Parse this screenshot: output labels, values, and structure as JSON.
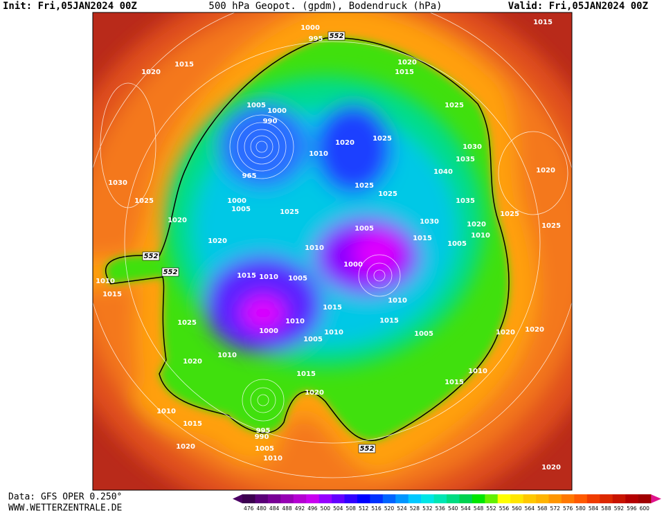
{
  "header": {
    "init": "Init: Fri,05JAN2024 00Z",
    "title": "500 hPa Geopot. (gpdm), Bodendruck (hPa)",
    "valid": "Valid: Fri,05JAN2024 00Z"
  },
  "footer": {
    "source": "Data: GFS OPER 0.250°",
    "website": "WWW.WETTERZENTRALE.DE"
  },
  "isobar_labels": [
    "1000",
    "995",
    "552",
    "1015",
    "1020",
    "1015",
    "1020",
    "1015",
    "1005",
    "1000",
    "990",
    "1025",
    "1020",
    "1025",
    "1030",
    "1035",
    "1040",
    "1020",
    "1010",
    "965",
    "1030",
    "1025",
    "1025",
    "1000",
    "1005",
    "1025",
    "1025",
    "1035",
    "1020",
    "1025",
    "1025",
    "1030",
    "1020",
    "1005",
    "1010",
    "1005",
    "1015",
    "1020",
    "1010",
    "552",
    "552",
    "1000",
    "1010",
    "1015",
    "1010",
    "1005",
    "1015",
    "1010",
    "1015",
    "1010",
    "1015",
    "1025",
    "1000",
    "1005",
    "1010",
    "1005",
    "1020",
    "1020",
    "1010",
    "1020",
    "1010",
    "1015",
    "1015",
    "1020",
    "1010",
    "1015",
    "995",
    "990",
    "1020",
    "1005",
    "552",
    "1010",
    "1020"
  ],
  "colorbar": {
    "values": [
      476,
      480,
      484,
      488,
      492,
      496,
      500,
      504,
      508,
      512,
      516,
      520,
      524,
      528,
      532,
      536,
      540,
      544,
      548,
      552,
      556,
      560,
      564,
      568,
      572,
      576,
      580,
      584,
      588,
      592,
      596,
      600
    ],
    "colors": [
      "#3c0050",
      "#5a0078",
      "#780096",
      "#9600b4",
      "#b400d2",
      "#c800f0",
      "#9600ff",
      "#6400ff",
      "#3200ff",
      "#0000ff",
      "#0032ff",
      "#0064ff",
      "#0096ff",
      "#00c8ff",
      "#00e6e6",
      "#00e6b4",
      "#00dc82",
      "#00d250",
      "#00e600",
      "#64f000",
      "#ffff00",
      "#ffe600",
      "#ffc800",
      "#ffb400",
      "#ff9600",
      "#ff7800",
      "#ff5a00",
      "#f03c00",
      "#dc2800",
      "#c81400",
      "#b40000",
      "#a00000"
    ],
    "low_color": "#4b0064",
    "high_color": "#e0148c"
  }
}
